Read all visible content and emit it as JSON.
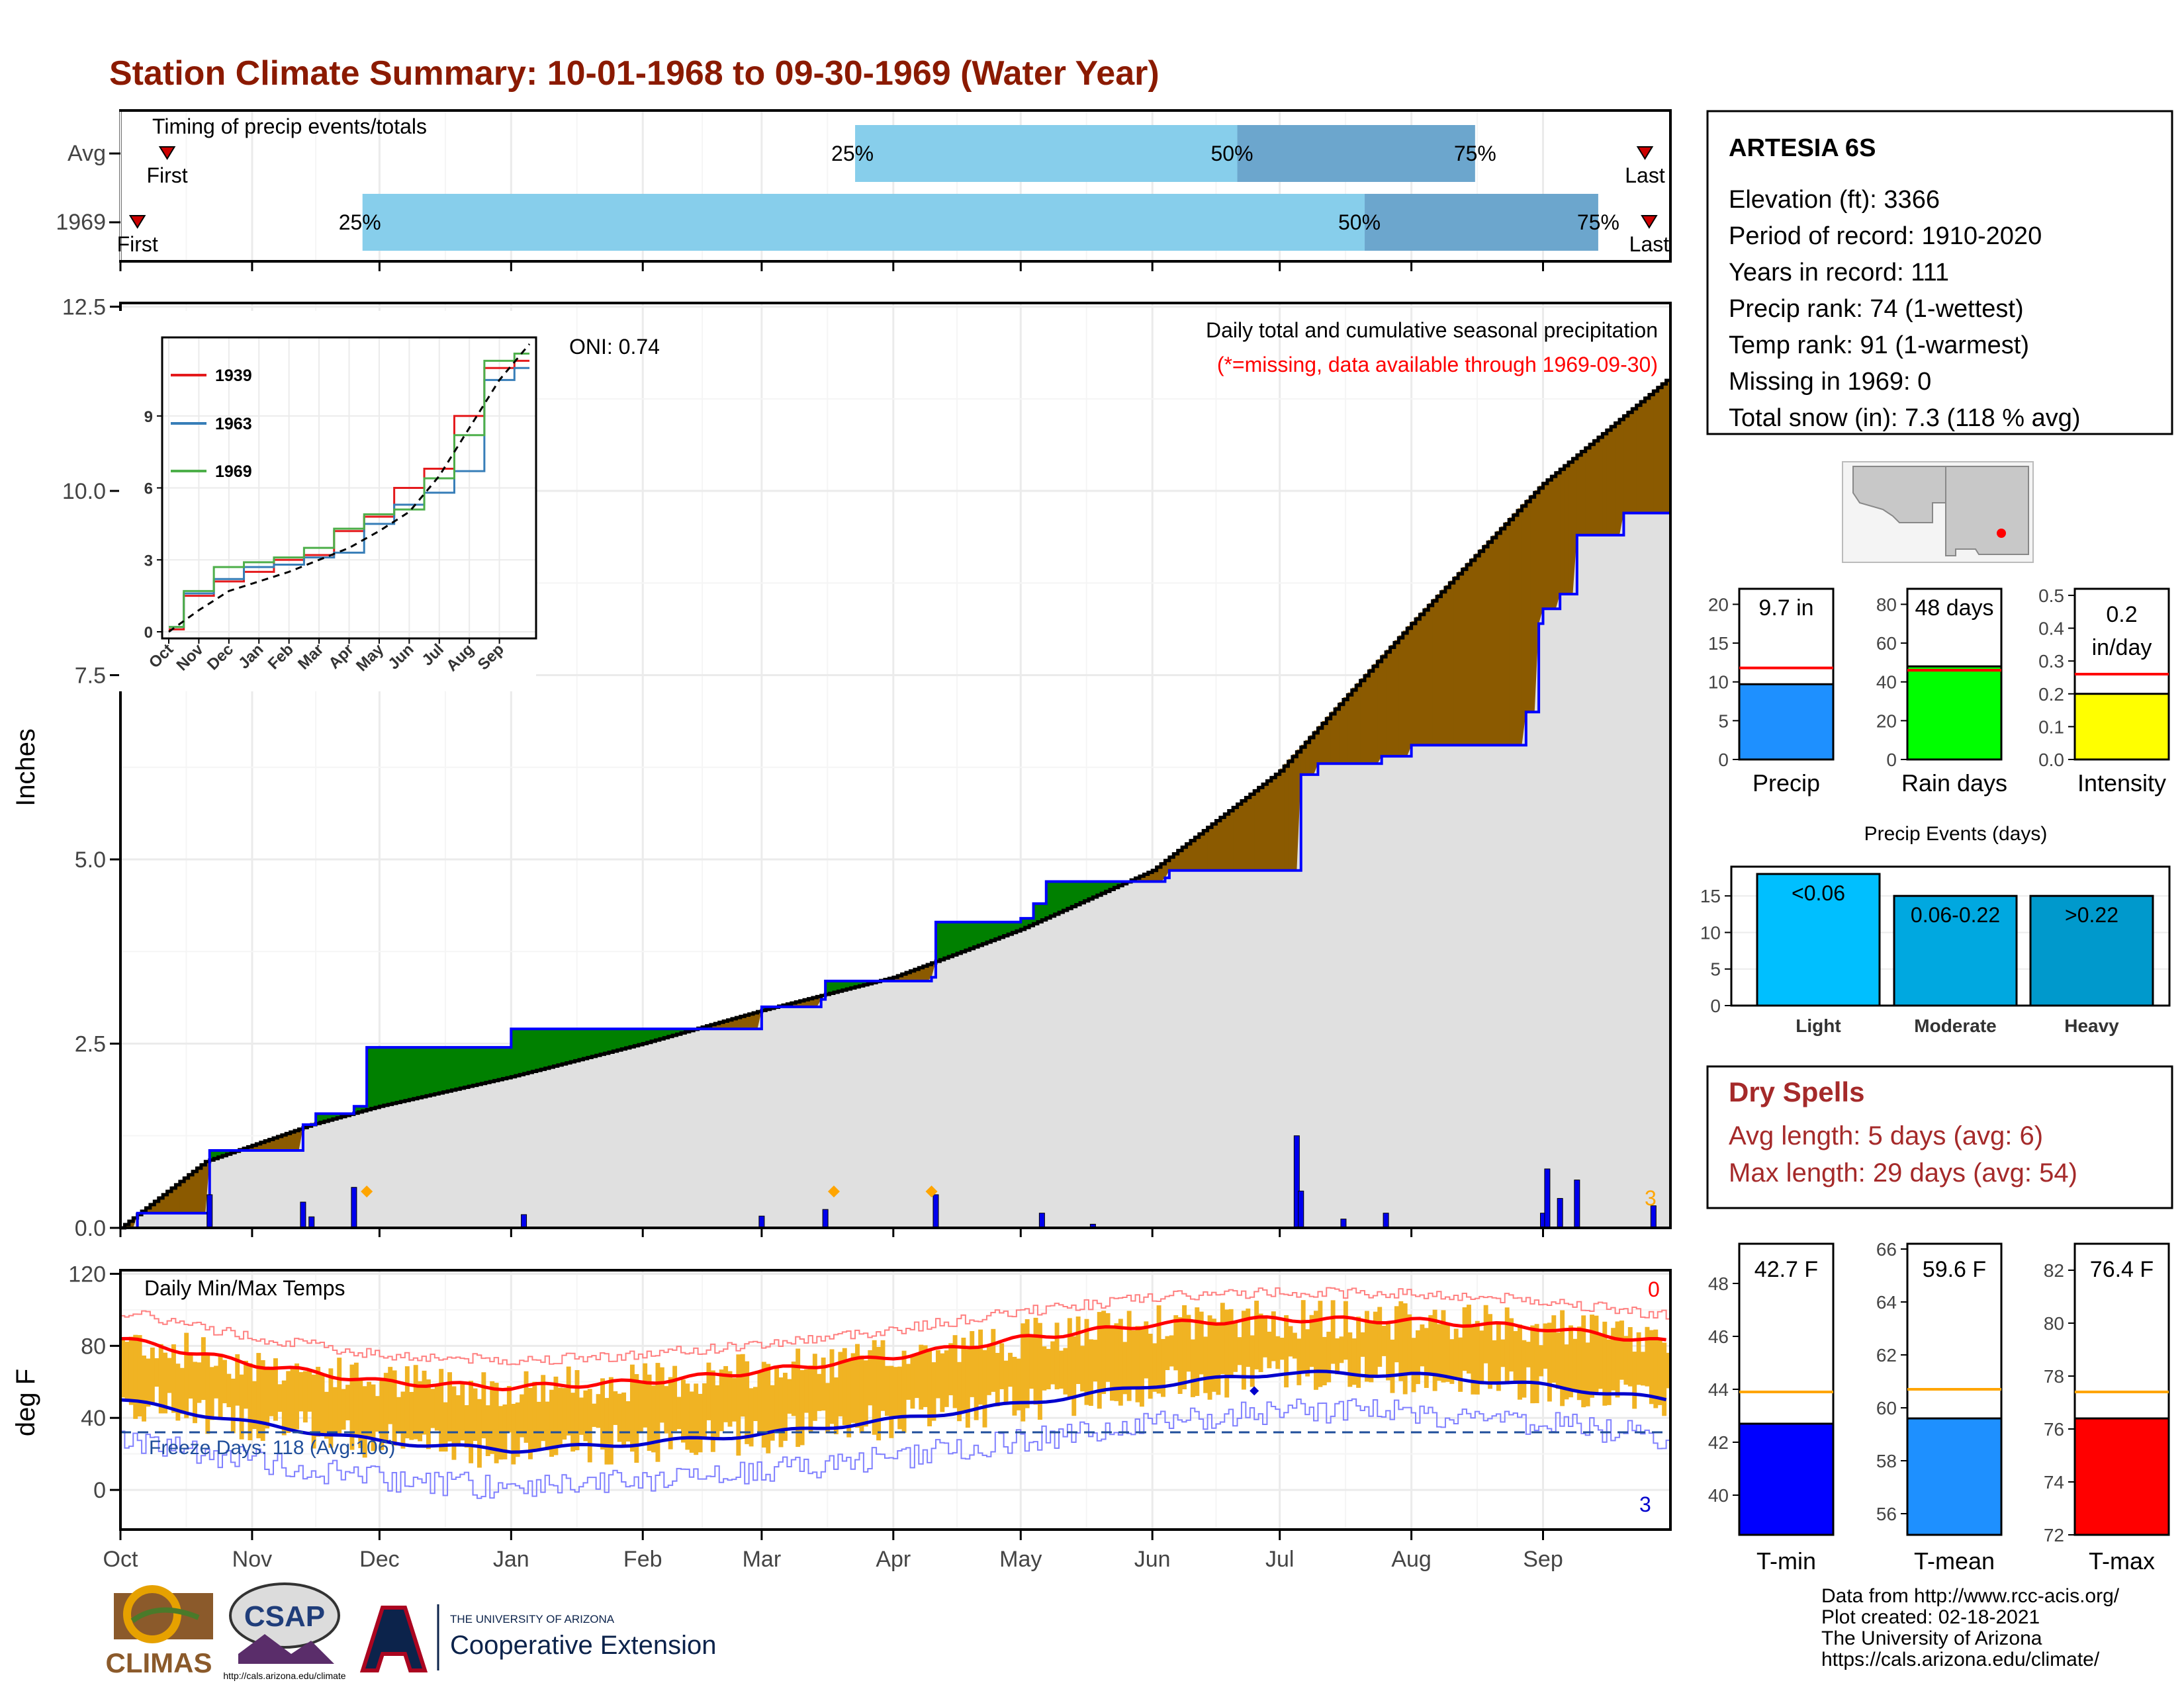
{
  "title": "Station Climate Summary: 10-01-1968 to 09-30-1969 (Water Year)",
  "colors": {
    "title": "#8b1a00",
    "precip_surplus": "#008000",
    "precip_deficit": "#8b5a00",
    "normal_fill": "#e0e0e0",
    "observed_line": "#0000ff",
    "temp_bar": "#f0b323",
    "tmax_line": "#ff0000",
    "tmin_line": "#0000cc",
    "quartile_light": "#87ceeb",
    "quartile_dark": "#6ca6cd",
    "dry_spell_text": "#a52a2a"
  },
  "timing_panel": {
    "label": "Timing of precip events/totals",
    "rows": [
      {
        "name": "Avg",
        "first": "First",
        "last": "Last",
        "first_date": "1968-10-12",
        "last_date": "1969-09-25",
        "q25": "25%",
        "q50": "50%",
        "q75": "75%",
        "q25_date": "1969-03-23",
        "q50_date": "1969-06-21",
        "q75_date": "1969-08-16"
      },
      {
        "name": "1969",
        "first": "First",
        "last": "Last",
        "first_date": "1968-10-05",
        "last_date": "1969-09-26",
        "q25": "25%",
        "q50": "50%",
        "q75": "75%",
        "q25_date": "1968-11-27",
        "q50_date": "1969-07-21",
        "q75_date": "1969-09-14"
      }
    ]
  },
  "main_panel": {
    "ylabel": "Inches",
    "header_line1": "Daily total and cumulative seasonal precipitation",
    "header_line2": "(*=missing, data available through 1969-09-30)",
    "oni": "ONI: 0.74",
    "missing_count": "3",
    "yticks": [
      "0.0",
      "2.5",
      "5.0",
      "7.5",
      "10.0",
      "12.5"
    ],
    "months": [
      "Oct",
      "Nov",
      "Dec",
      "Jan",
      "Feb",
      "Mar",
      "Apr",
      "May",
      "Jun",
      "Jul",
      "Aug",
      "Sep"
    ]
  },
  "inset": {
    "legend": [
      "1939",
      "1963",
      "1969"
    ],
    "legend_colors": [
      "#e41a1c",
      "#377eb8",
      "#4daf4a"
    ],
    "yticks": [
      "0",
      "3",
      "6",
      "9"
    ],
    "months": [
      "Oct",
      "Nov",
      "Dec",
      "Jan",
      "Feb",
      "Mar",
      "Apr",
      "May",
      "Jun",
      "Jul",
      "Aug",
      "Sep"
    ]
  },
  "temp_panel": {
    "label": "Daily Min/Max Temps",
    "ylabel": "deg F",
    "freeze_label": "Freeze Days: 118 (Avg:106)",
    "tmax_missing": "0",
    "tmin_missing": "3",
    "yticks": [
      "0",
      "40",
      "80",
      "120"
    ]
  },
  "station_box": {
    "name": "ARTESIA 6S",
    "lines": [
      "Elevation (ft): 3366",
      "Period of record: 1910-2020",
      "Years in record: 111",
      "Precip rank: 74 (1-wettest)",
      "Temp rank: 91 (1-warmest)",
      "Missing in 1969: 0",
      "Total snow (in): 7.3 (118 % avg)"
    ]
  },
  "mini_bars": [
    {
      "label": "Precip",
      "value_text": "9.7 in",
      "value": 9.7,
      "avg": 11.8,
      "ymax": 22,
      "yticks": [
        "0",
        "5",
        "10",
        "15",
        "20"
      ],
      "tick_vals": [
        0,
        5,
        10,
        15,
        20
      ],
      "color": "#1e90ff"
    },
    {
      "label": "Rain days",
      "value_text": "48 days",
      "value": 48,
      "avg": 46,
      "ymax": 88,
      "yticks": [
        "0",
        "20",
        "40",
        "60",
        "80"
      ],
      "tick_vals": [
        0,
        20,
        40,
        60,
        80
      ],
      "color": "#00ff00"
    },
    {
      "label": "Intensity",
      "value_text": "0.2 in/day",
      "value_line1": "0.2",
      "value_line2": "in/day",
      "value": 0.2,
      "avg": 0.26,
      "ymax": 0.52,
      "yticks": [
        "0.0",
        "0.1",
        "0.2",
        "0.3",
        "0.4",
        "0.5"
      ],
      "tick_vals": [
        0,
        0.1,
        0.2,
        0.3,
        0.4,
        0.5
      ],
      "color": "#ffff00"
    }
  ],
  "precip_events": {
    "title": "Precip Events (days)",
    "yticks": [
      "0",
      "5",
      "10",
      "15"
    ],
    "bars": [
      {
        "label": "Light",
        "range": "<0.06",
        "value": 18,
        "color": "#00bfff"
      },
      {
        "label": "Moderate",
        "range": "0.06-0.22",
        "value": 15,
        "color": "#00a8e0"
      },
      {
        "label": "Heavy",
        "range": ">0.22",
        "value": 15,
        "color": "#0099cc"
      }
    ]
  },
  "dry_spells": {
    "title": "Dry Spells",
    "avg_line": "Avg length: 5 days (avg: 6)",
    "max_line": "Max length: 29 days (avg: 54)"
  },
  "temp_bars": [
    {
      "label": "T-min",
      "value_text": "42.7 F",
      "value": 42.7,
      "avg": 43.9,
      "ymin": 38.5,
      "ymax": 49.5,
      "yticks": [
        "40",
        "42",
        "44",
        "46",
        "48"
      ],
      "tick_vals": [
        40,
        42,
        44,
        46,
        48
      ],
      "color": "#0000ff"
    },
    {
      "label": "T-mean",
      "value_text": "59.6 F",
      "value": 59.6,
      "avg": 60.7,
      "ymin": 55.2,
      "ymax": 66.2,
      "yticks": [
        "56",
        "58",
        "60",
        "62",
        "64",
        "66"
      ],
      "tick_vals": [
        56,
        58,
        60,
        62,
        64,
        66
      ],
      "color": "#1e90ff"
    },
    {
      "label": "T-max",
      "value_text": "76.4 F",
      "value": 76.4,
      "avg": 77.4,
      "ymin": 72,
      "ymax": 83,
      "yticks": [
        "72",
        "74",
        "76",
        "78",
        "80",
        "82"
      ],
      "tick_vals": [
        72,
        74,
        76,
        78,
        80,
        82
      ],
      "color": "#ff0000"
    }
  ],
  "logos": {
    "climas": "CLIMAS",
    "csap": "CSAP",
    "csap_url": "http://cals.arizona.edu/climate",
    "ua_small": "THE UNIVERSITY OF ARIZONA",
    "ua_big": "Cooperative Extension"
  },
  "credits": [
    "Data from http://www.rcc-acis.org/",
    "Plot created: 02-18-2021",
    "The University of Arizona",
    "https://cals.arizona.edu/climate/"
  ],
  "chart_data": [
    {
      "type": "area",
      "title": "Daily total and cumulative seasonal precipitation",
      "ylabel": "Inches",
      "ylim": [
        0,
        12.5
      ],
      "x_range": [
        "1968-10-01",
        "1969-09-30"
      ],
      "observed_cumulative": {
        "x": [
          "1968-10-01",
          "1968-10-05",
          "1968-10-21",
          "1968-10-22",
          "1968-11-09",
          "1968-11-13",
          "1968-11-16",
          "1968-11-25",
          "1968-11-28",
          "1969-01-01",
          "1969-03-01",
          "1969-03-15",
          "1969-03-16",
          "1969-04-10",
          "1969-04-11",
          "1969-05-01",
          "1969-05-04",
          "1969-05-07",
          "1969-06-04",
          "1969-06-05",
          "1969-07-05",
          "1969-07-06",
          "1969-07-10",
          "1969-07-25",
          "1969-08-01",
          "1969-08-26",
          "1969-08-28",
          "1969-08-31",
          "1969-09-01",
          "1969-09-02",
          "1969-09-05",
          "1969-09-09",
          "1969-09-20",
          "1969-09-30"
        ],
        "y": [
          0,
          0.2,
          0.2,
          1.05,
          1.05,
          1.4,
          1.55,
          1.65,
          2.45,
          2.7,
          3.0,
          3.1,
          3.35,
          3.4,
          4.15,
          4.2,
          4.4,
          4.7,
          4.75,
          4.85,
          4.85,
          6.15,
          6.3,
          6.4,
          6.55,
          6.55,
          7.0,
          8.2,
          8.4,
          8.4,
          8.6,
          9.4,
          9.7,
          9.7
        ]
      },
      "normal_cumulative": {
        "x": [
          "1968-10-01",
          "1968-10-21",
          "1968-11-15",
          "1968-12-01",
          "1969-01-01",
          "1969-02-01",
          "1969-03-01",
          "1969-04-01",
          "1969-05-01",
          "1969-06-01",
          "1969-07-01",
          "1969-08-01",
          "1969-09-01",
          "1969-09-30"
        ],
        "y": [
          0,
          0.9,
          1.4,
          1.65,
          2.05,
          2.5,
          2.95,
          3.4,
          4.05,
          4.85,
          6.2,
          8.2,
          10.1,
          11.5
        ]
      },
      "daily_precip": {
        "x": [
          "1968-10-22",
          "1968-11-13",
          "1968-11-15",
          "1968-11-25",
          "1969-01-04",
          "1969-03-01",
          "1969-03-16",
          "1969-04-11",
          "1969-05-06",
          "1969-05-18",
          "1969-07-05",
          "1969-07-06",
          "1969-07-16",
          "1969-07-26",
          "1969-09-01",
          "1969-09-02",
          "1969-09-05",
          "1969-09-09",
          "1969-09-27"
        ],
        "y": [
          0.45,
          0.35,
          0.15,
          0.55,
          0.18,
          0.16,
          0.25,
          0.45,
          0.2,
          0.05,
          1.25,
          0.5,
          0.12,
          0.2,
          0.2,
          0.8,
          0.4,
          0.65,
          0.3
        ]
      },
      "snow_markers": [
        "1968-11-28",
        "1969-03-18",
        "1969-04-10"
      ]
    },
    {
      "type": "line",
      "title": "",
      "x": [
        "Oct",
        "Nov",
        "Dec",
        "Jan",
        "Feb",
        "Mar",
        "Apr",
        "May",
        "Jun",
        "Jul",
        "Aug",
        "Sep",
        "Oct"
      ],
      "ylim": [
        0,
        12
      ],
      "series": [
        {
          "name": "1939",
          "values": [
            0.1,
            1.5,
            2.1,
            2.5,
            3.0,
            3.2,
            4.2,
            4.8,
            6.0,
            6.8,
            9.0,
            11.0,
            11.3
          ]
        },
        {
          "name": "1963",
          "values": [
            0.2,
            1.6,
            2.2,
            2.7,
            2.8,
            3.1,
            3.3,
            4.5,
            5.3,
            5.8,
            6.7,
            10.5,
            11.0
          ]
        },
        {
          "name": "1969",
          "values": [
            0.2,
            1.7,
            2.7,
            2.9,
            3.1,
            3.5,
            4.3,
            4.9,
            5.1,
            6.4,
            8.2,
            11.3,
            11.6
          ]
        },
        {
          "values": [
            0,
            0.9,
            1.7,
            2.1,
            2.5,
            3.0,
            3.5,
            4.2,
            5.0,
            6.5,
            8.5,
            10.5,
            12.0
          ]
        }
      ]
    },
    {
      "type": "bar",
      "title": "Daily Min/Max Temps",
      "ylabel": "deg F",
      "ylim": [
        -20,
        120
      ],
      "x": [
        "1968-10-01",
        "1968-11-01",
        "1968-12-01",
        "1969-01-01",
        "1969-02-01",
        "1969-03-01",
        "1969-04-01",
        "1969-05-01",
        "1969-06-01",
        "1969-07-01",
        "1969-08-01",
        "1969-09-01",
        "1969-09-30"
      ],
      "series": [
        {
          "name": "avg tmax",
          "values": [
            84,
            70,
            60,
            57,
            60,
            66,
            74,
            84,
            92,
            95,
            94,
            90,
            82
          ]
        },
        {
          "name": "avg tmin",
          "values": [
            50,
            37,
            27,
            22,
            26,
            31,
            39,
            48,
            58,
            65,
            64,
            58,
            50
          ]
        }
      ],
      "freeze_threshold": 32
    },
    {
      "type": "bar",
      "categories": [
        "Precip",
        "Rain days",
        "Intensity"
      ],
      "values": [
        9.7,
        48,
        0.2
      ]
    },
    {
      "type": "bar",
      "title": "Precip Events (days)",
      "categories": [
        "Light",
        "Moderate",
        "Heavy"
      ],
      "values": [
        18,
        15,
        15
      ]
    },
    {
      "type": "bar",
      "categories": [
        "T-min",
        "T-mean",
        "T-max"
      ],
      "values": [
        42.7,
        59.6,
        76.4
      ]
    }
  ]
}
